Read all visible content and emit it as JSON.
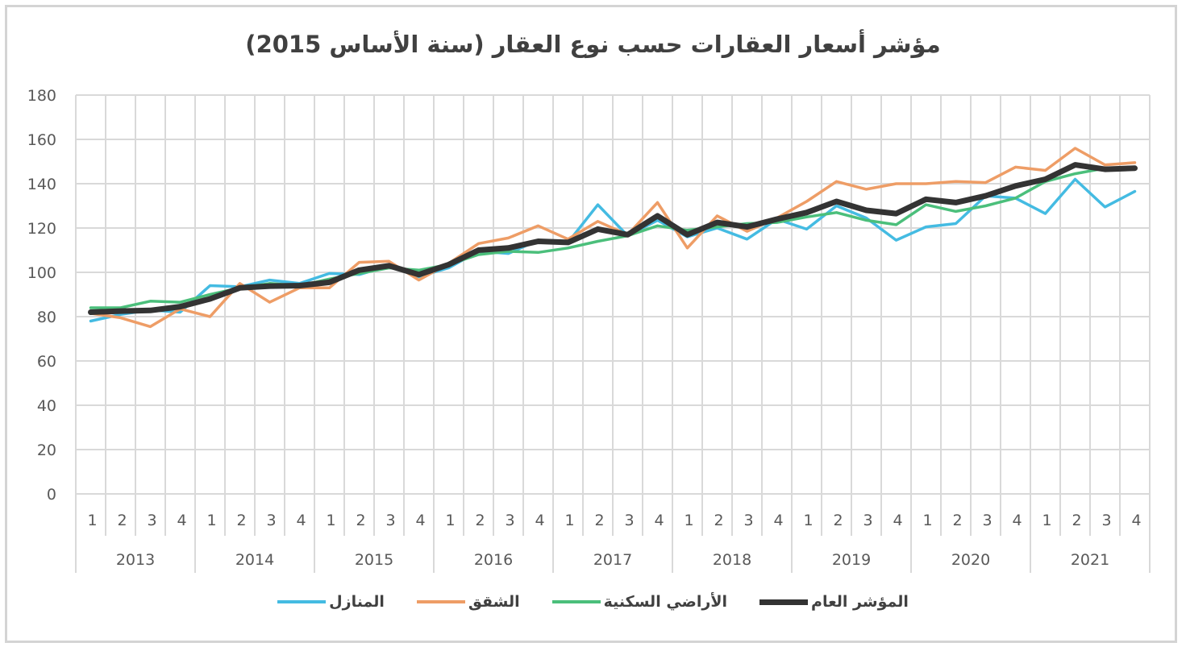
{
  "chart_data": {
    "type": "line",
    "title": "مؤشر أسعار العقارات حسب نوع العقار (سنة الأساس 2015)",
    "ylim": [
      0,
      180
    ],
    "yticks": [
      0,
      20,
      40,
      60,
      80,
      100,
      120,
      140,
      160,
      180
    ],
    "grid": true,
    "legend_position": "bottom",
    "years": [
      "2013",
      "2014",
      "2015",
      "2016",
      "2017",
      "2018",
      "2019",
      "2020",
      "2021"
    ],
    "quarters": [
      "1",
      "2",
      "3",
      "4"
    ],
    "series": [
      {
        "name": "المؤشر العام",
        "color": "#333333",
        "values": [
          82,
          82.5,
          82.8,
          84.5,
          88,
          93,
          93.8,
          94,
          95.5,
          101,
          103,
          99,
          103.5,
          110,
          111,
          114,
          113.5,
          119.5,
          117,
          125.5,
          117,
          122.5,
          120.5,
          124,
          127,
          132,
          128,
          126.5,
          133,
          131.5,
          134.5,
          139,
          142,
          148.5,
          146.5,
          147
        ]
      },
      {
        "name": "الأراضي السكنية",
        "color": "#4bbf7b",
        "values": [
          84,
          84,
          87,
          86.5,
          90,
          93,
          95,
          94,
          97,
          99.5,
          102,
          101,
          103.5,
          108,
          109.5,
          109,
          111,
          114,
          116.5,
          121,
          119,
          120.5,
          122,
          122.5,
          125,
          127,
          123.5,
          121.5,
          130.5,
          127.5,
          130,
          133.5,
          141,
          144.5,
          147,
          147.5
        ]
      },
      {
        "name": "الشقق",
        "color": "#ee9d66",
        "values": [
          81.5,
          79.5,
          75.5,
          83.5,
          80,
          95,
          86.5,
          93,
          93,
          104.5,
          105,
          96.5,
          104,
          113,
          115.5,
          121,
          115,
          123,
          117,
          131.5,
          111,
          125.5,
          118.5,
          124.5,
          132,
          141,
          137.5,
          140,
          140,
          141,
          140.5,
          147.5,
          146,
          156,
          148.5,
          149.5
        ]
      },
      {
        "name": "المنازل",
        "color": "#44bbe2",
        "values": [
          78,
          81,
          83,
          82,
          94,
          93.5,
          96.5,
          95,
          99.5,
          99,
          103,
          98,
          102,
          109.5,
          108.5,
          114.5,
          113.5,
          130.5,
          116.5,
          123.5,
          116,
          120,
          115,
          124,
          119.5,
          130,
          124.5,
          114.5,
          120.5,
          122,
          134.5,
          133.5,
          126.5,
          142,
          129.5,
          136.5
        ]
      }
    ]
  }
}
